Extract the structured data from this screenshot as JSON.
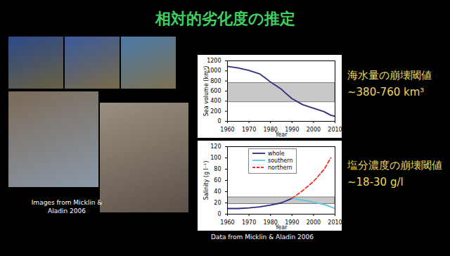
{
  "title": "相対的劣化度の推定",
  "image_credit": "Images from Micklin & Aladin 2006",
  "data_credit": "Data from Micklin & Aladin 2006",
  "annotations": [
    {
      "label": "海水量の崩壊閾値",
      "text": "~380-760 km³"
    },
    {
      "label": "塩分濃度の崩壊閾値",
      "text": "~18-30 g/l"
    }
  ],
  "chart_data": [
    {
      "type": "line",
      "x_label": "Year",
      "y_label": "Sea volume (km³)",
      "x": [
        1960,
        1965,
        1970,
        1975,
        1977,
        1980,
        1985,
        1987,
        1990,
        1995,
        2000,
        2005,
        2008,
        2010
      ],
      "series": [
        {
          "name": "whole",
          "color": "#2e2e7a",
          "values": [
            1090,
            1060,
            1010,
            940,
            880,
            780,
            640,
            560,
            450,
            330,
            260,
            190,
            120,
            100
          ]
        }
      ],
      "threshold_band": [
        380,
        760
      ],
      "xlim": [
        1960,
        2010
      ],
      "xticks": [
        1960,
        1970,
        1980,
        1990,
        2000,
        2010
      ],
      "ylim": [
        0,
        1200
      ],
      "yticks": [
        0,
        200,
        400,
        600,
        800,
        1000,
        1200
      ]
    },
    {
      "type": "line",
      "x_label": "Year",
      "y_label": "Salinity (g l⁻¹)",
      "x": [
        1960,
        1965,
        1970,
        1975,
        1980,
        1985,
        1990,
        1995,
        2000,
        2005,
        2008,
        2010
      ],
      "series": [
        {
          "name": "whole",
          "color": "#2b2b80",
          "line_style": "solid",
          "values": [
            10,
            10,
            11,
            13,
            16,
            20,
            28,
            null,
            null,
            null,
            null,
            null
          ]
        },
        {
          "name": "southern",
          "color": "#5bc8e0",
          "line_style": "solid",
          "values": [
            null,
            null,
            null,
            null,
            null,
            null,
            28,
            25,
            21,
            17,
            13,
            10
          ]
        },
        {
          "name": "northern",
          "color": "#e8322a",
          "line_style": "dashed",
          "values": [
            null,
            null,
            null,
            null,
            null,
            null,
            28,
            42,
            58,
            80,
            100,
            null
          ]
        }
      ],
      "threshold_band": [
        18,
        30
      ],
      "legend": "top",
      "xlim": [
        1960,
        2010
      ],
      "xticks": [
        1960,
        1970,
        1980,
        1990,
        2000,
        2010
      ],
      "ylim": [
        0,
        120
      ],
      "yticks": [
        0,
        20,
        40,
        60,
        80,
        100,
        120
      ]
    }
  ]
}
